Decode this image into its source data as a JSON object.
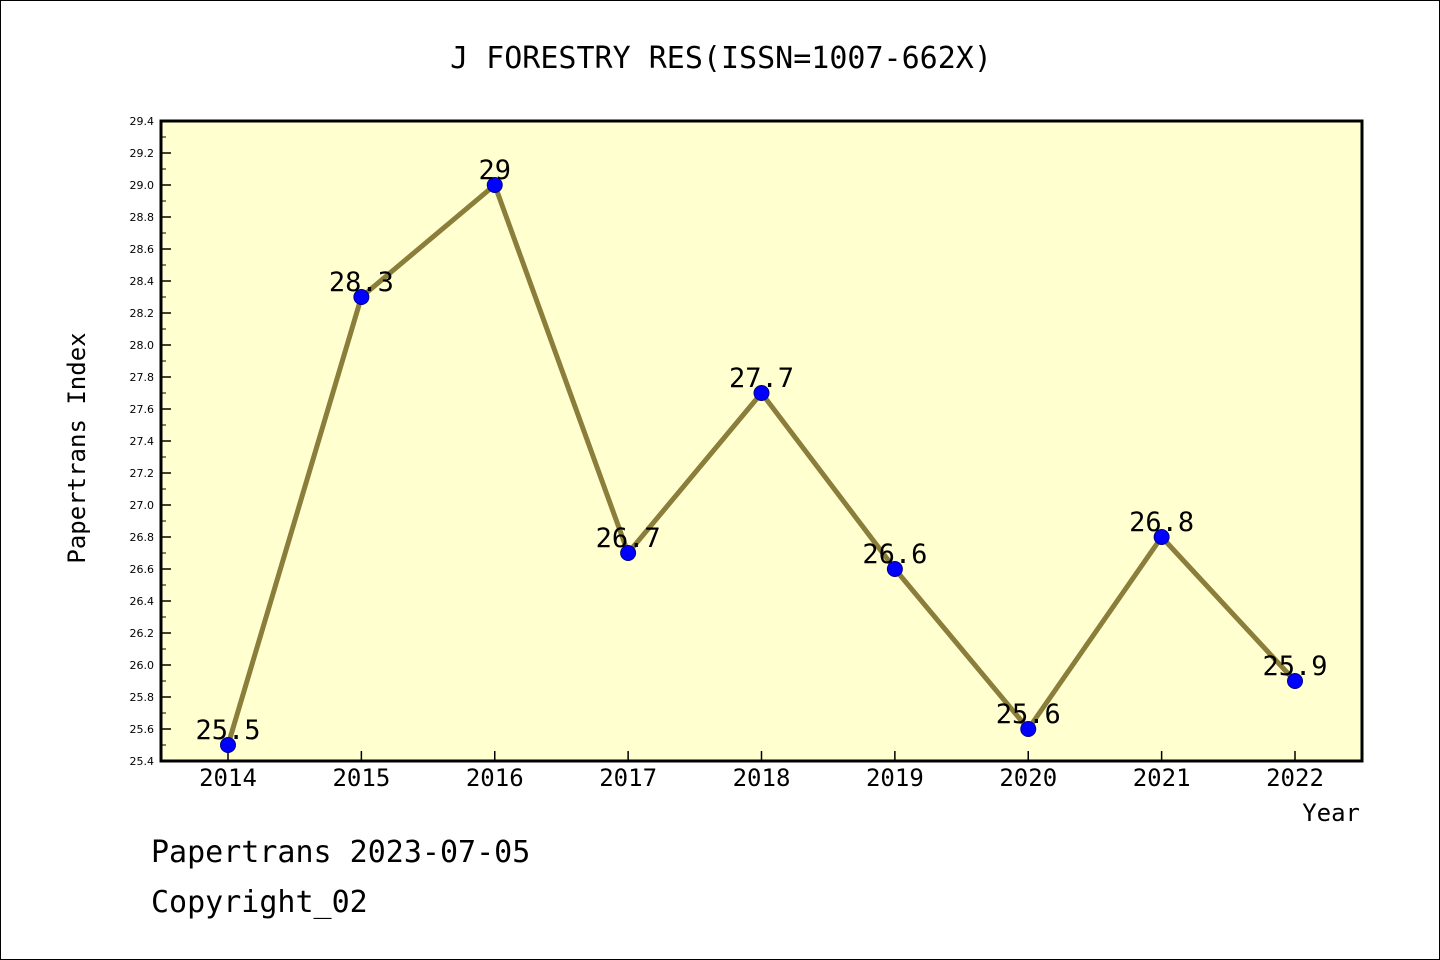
{
  "chart_data": {
    "type": "line",
    "title": "J FORESTRY RES(ISSN=1007-662X)",
    "xlabel": "Year",
    "ylabel": "Papertrans Index",
    "x": [
      "2014",
      "2015",
      "2016",
      "2017",
      "2018",
      "2019",
      "2020",
      "2021",
      "2022"
    ],
    "series": [
      {
        "values": [
          25.5,
          28.3,
          29.0,
          26.7,
          27.7,
          26.6,
          25.6,
          26.8,
          25.9
        ],
        "labels": [
          "25.5",
          "28.3",
          "29",
          "26.7",
          "27.7",
          "26.6",
          "25.6",
          "26.8",
          "25.9"
        ]
      }
    ],
    "ylim": [
      25.4,
      29.4
    ],
    "ytick_step": 0.2,
    "grid": false,
    "legend": "none",
    "colors": {
      "plot_background": "#ffffd0",
      "line": "#8b7d3a",
      "marker": "#0000ff",
      "marker_edge": "#00008b"
    }
  },
  "footer": {
    "line1": "Papertrans 2023-07-05",
    "line2": "Copyright_02"
  }
}
